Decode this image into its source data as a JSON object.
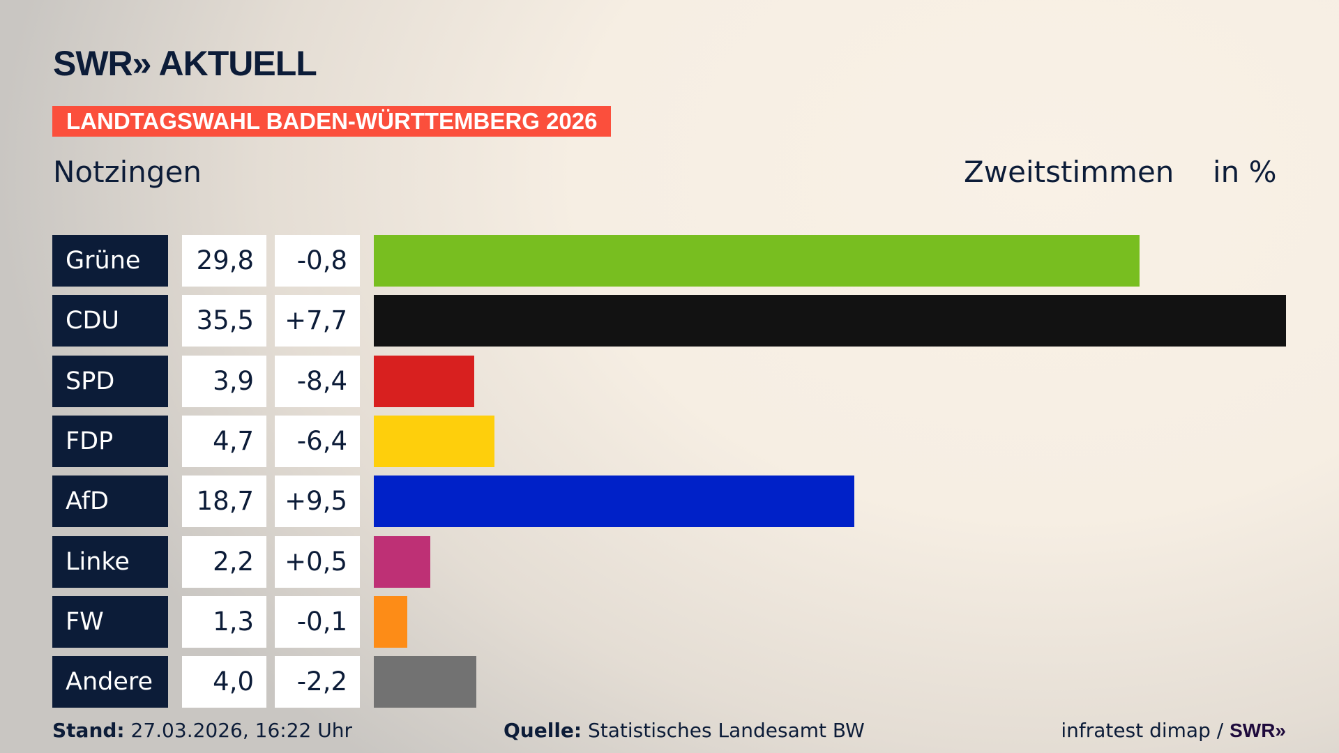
{
  "header": {
    "logo": "SWR» AKTUELL",
    "banner": "LANDTAGSWAHL BADEN-WÜRTTEMBERG 2026",
    "place": "Notzingen",
    "vote_type": "Zweitstimmen",
    "unit": "in %"
  },
  "chart_data": {
    "type": "bar",
    "orientation": "horizontal",
    "categories": [
      "Grüne",
      "CDU",
      "SPD",
      "FDP",
      "AfD",
      "Linke",
      "FW",
      "Andere"
    ],
    "values": [
      29.8,
      35.5,
      3.9,
      4.7,
      18.7,
      2.2,
      1.3,
      4.0
    ],
    "value_labels": [
      "29,8",
      "35,5",
      "3,9",
      "4,7",
      "18,7",
      "2,2",
      "1,3",
      "4,0"
    ],
    "change_labels": [
      "-0,8",
      "+7,7",
      "-8,4",
      "-6,4",
      "+9,5",
      "+0,5",
      "-0,1",
      "-2,2"
    ],
    "colors": [
      "#78be20",
      "#121212",
      "#d8201f",
      "#fecf0c",
      "#0021c8",
      "#be3075",
      "#fd8c17",
      "#727272"
    ],
    "grid": false,
    "legend": "none"
  },
  "footer": {
    "stand_label": "Stand:",
    "stand_value": "27.03.2026, 16:22 Uhr",
    "source_label": "Quelle:",
    "source_value": "Statistisches Landesamt BW",
    "credit": "infratest dimap / ",
    "credit_logo": "SWR»"
  }
}
